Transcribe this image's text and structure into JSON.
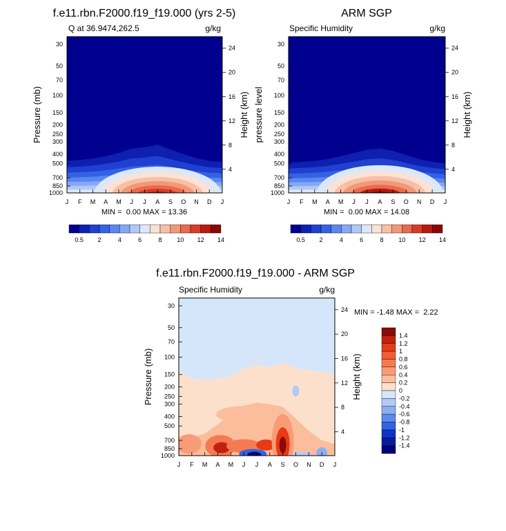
{
  "chart_data": [
    {
      "type": "heatmap",
      "title": "f.e11.rbn.F2000.f19_f19.000 (yrs 2-5)",
      "subtitle_left": "Q at 36.9474,262.5",
      "subtitle_right": "g/kg",
      "ylabel": "Pressure (mb)",
      "ylabel_right": "Height (km)",
      "x": [
        "J",
        "F",
        "M",
        "A",
        "M",
        "J",
        "J",
        "A",
        "S",
        "O",
        "N",
        "D",
        "J"
      ],
      "y_ticks": [
        "30",
        "50",
        "70",
        "100",
        "150",
        "200",
        "250",
        "300",
        "400",
        "500",
        "700",
        "850",
        "1000"
      ],
      "height_ticks": [
        "24",
        "20",
        "16",
        "12",
        "8",
        "4"
      ],
      "top_boundary_mb": [
        470,
        460,
        445,
        420,
        390,
        350,
        340,
        320,
        360,
        400,
        440,
        470,
        480
      ],
      "peak_value": 13.36,
      "stats": "MIN =  0.00 MAX = 13.36",
      "colorbar_labels": [
        "0.5",
        "2",
        "4",
        "6",
        "8",
        "10",
        "12",
        "14"
      ]
    },
    {
      "type": "heatmap",
      "title": "ARM SGP",
      "subtitle_left": "Specific Humidity",
      "subtitle_right": "g/kg",
      "ylabel": "pressure level",
      "ylabel_right": "Height (km)",
      "x": [
        "J",
        "F",
        "M",
        "A",
        "M",
        "J",
        "J",
        "A",
        "S",
        "O",
        "N",
        "D",
        "J"
      ],
      "y_ticks": [
        "30",
        "50",
        "70",
        "100",
        "150",
        "200",
        "250",
        "300",
        "400",
        "500",
        "700",
        "850",
        "1000"
      ],
      "height_ticks": [
        "24",
        "20",
        "16",
        "12",
        "8",
        "4"
      ],
      "top_boundary_mb": [
        490,
        480,
        470,
        450,
        420,
        390,
        360,
        350,
        370,
        410,
        450,
        480,
        500
      ],
      "peak_value": 14.08,
      "stats": "MIN =  0.00 MAX = 14.08",
      "colorbar_labels": [
        "0.5",
        "2",
        "4",
        "6",
        "8",
        "10",
        "12",
        "14"
      ]
    },
    {
      "type": "heatmap",
      "title": "f.e11.rbn.F2000.f19_f19.000 - ARM SGP",
      "subtitle_left": "Specific Humidity",
      "subtitle_right": "g/kg",
      "ylabel": "Pressure (mb)",
      "ylabel_right": "Height (km)",
      "x": [
        "J",
        "F",
        "M",
        "A",
        "M",
        "J",
        "J",
        "A",
        "S",
        "O",
        "N",
        "D",
        "J"
      ],
      "y_ticks": [
        "30",
        "50",
        "70",
        "100",
        "150",
        "200",
        "250",
        "300",
        "400",
        "500",
        "700",
        "850",
        "1000"
      ],
      "height_ticks": [
        "24",
        "20",
        "16",
        "12",
        "8",
        "4"
      ],
      "positive_boundary_mb": [
        140,
        165,
        170,
        165,
        155,
        130,
        120,
        125,
        115,
        130,
        135,
        140,
        150
      ],
      "stats": "MIN = -1.48 MAX =  2.22",
      "colorbar_labels": [
        "1.4",
        "1.2",
        "1",
        "0.8",
        "0.6",
        "0.4",
        "0.2",
        "0",
        "-0.2",
        "-0.4",
        "-0.6",
        "-0.8",
        "-1",
        "-1.2",
        "-1.4"
      ]
    }
  ],
  "colors": {
    "seq": [
      "#00008f",
      "#0d20b0",
      "#1f40d0",
      "#3462e6",
      "#5a86f0",
      "#86a8f4",
      "#b0c8f8",
      "#dce8f8",
      "#fbe2d4",
      "#f7c0a6",
      "#f29878",
      "#ea6a4c",
      "#d93c26",
      "#b81a12",
      "#8a0606"
    ],
    "diff": [
      "#8b0a0a",
      "#c0220f",
      "#e83a14",
      "#f25d33",
      "#f57a52",
      "#f89c77",
      "#fbbd9c",
      "#fde0cc",
      "#d5e6fa",
      "#b1cbf5",
      "#8aaef0",
      "#5f8aeb",
      "#3063e6",
      "#0d33c9",
      "#001e9e",
      "#00007a"
    ]
  }
}
